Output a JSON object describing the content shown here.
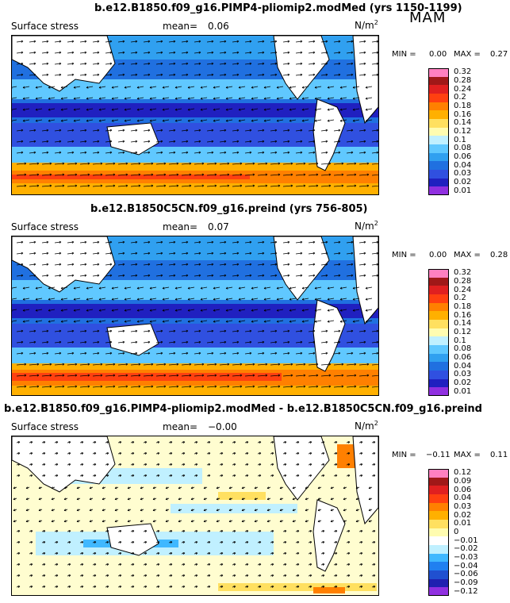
{
  "season": "MAM",
  "panels": [
    {
      "title": "b.e12.B1850.f09_g16.PIMP4-pliomip2.modMed (yrs 1150-1199)",
      "variable": "Surface stress",
      "mean_label": "mean=",
      "mean_value": "0.06",
      "unit": "N/m",
      "unit_sup": "2",
      "min_label": "MIN =",
      "min_value": "0.00",
      "max_label": "MAX =",
      "max_value": "0.27",
      "levels": [
        "0.32",
        "0.28",
        "0.24",
        "0.2",
        "0.18",
        "0.16",
        "0.14",
        "0.12",
        "0.1",
        "0.08",
        "0.06",
        "0.04",
        "0.03",
        "0.02",
        "0.01"
      ],
      "colors": [
        "#ff80c0",
        "#a01818",
        "#e02020",
        "#ff4010",
        "#ff8000",
        "#ffb000",
        "#ffe060",
        "#fffcb0",
        "#c0f0ff",
        "#60c8ff",
        "#30a0f0",
        "#2070e0",
        "#3050e0",
        "#2020c0",
        "#9030e0"
      ]
    },
    {
      "title": "b.e12.B1850C5CN.f09_g16.preind (yrs 756-805)",
      "variable": "Surface stress",
      "mean_label": "mean=",
      "mean_value": "0.07",
      "unit": "N/m",
      "unit_sup": "2",
      "min_label": "MIN =",
      "min_value": "0.00",
      "max_label": "MAX =",
      "max_value": "0.28",
      "levels": [
        "0.32",
        "0.28",
        "0.24",
        "0.2",
        "0.18",
        "0.16",
        "0.14",
        "0.12",
        "0.1",
        "0.08",
        "0.06",
        "0.04",
        "0.03",
        "0.02",
        "0.01"
      ],
      "colors": [
        "#ff80c0",
        "#a01818",
        "#e02020",
        "#ff4010",
        "#ff8000",
        "#ffb000",
        "#ffe060",
        "#fffcb0",
        "#c0f0ff",
        "#60c8ff",
        "#30a0f0",
        "#2070e0",
        "#3050e0",
        "#2020c0",
        "#9030e0"
      ]
    },
    {
      "title": "b.e12.B1850.f09_g16.PIMP4-pliomip2.modMed - b.e12.B1850C5CN.f09_g16.preind",
      "variable": "Surface stress",
      "mean_label": "mean=",
      "mean_value": "−0.00",
      "unit": "N/m",
      "unit_sup": "2",
      "min_label": "MIN =",
      "min_value": "−0.11",
      "max_label": "MAX =",
      "max_value": "0.11",
      "levels": [
        "0.12",
        "0.09",
        "0.06",
        "0.04",
        "0.03",
        "0.02",
        "0.01",
        "0",
        "−0.01",
        "−0.02",
        "−0.03",
        "−0.04",
        "−0.06",
        "−0.09",
        "−0.12"
      ],
      "colors": [
        "#ff80c0",
        "#a01818",
        "#e02020",
        "#ff4010",
        "#ff8000",
        "#ffb000",
        "#ffe060",
        "#fffcb0",
        "#ffffff",
        "#c0f0ff",
        "#40b8ff",
        "#2080f0",
        "#2050d0",
        "#2020b0",
        "#9030e0"
      ]
    }
  ]
}
